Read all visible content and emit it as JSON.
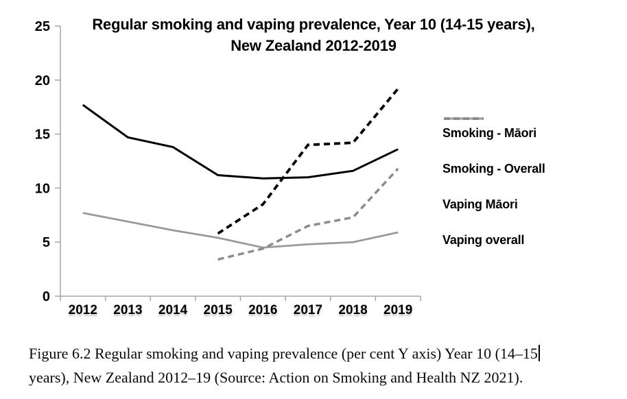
{
  "chart_data": {
    "type": "line",
    "title_line1": "Regular smoking and vaping prevalence, Year 10 (14-15 years),",
    "title_line2": "New Zealand 2012-2019",
    "categories": [
      "2012",
      "2013",
      "2014",
      "2015",
      "2016",
      "2017",
      "2018",
      "2019"
    ],
    "yticks": [
      0,
      5,
      10,
      15,
      20,
      25
    ],
    "ylim": [
      0,
      25
    ],
    "ylabel": "per cent",
    "grid": false,
    "legend_position": "right",
    "axis_color": "#a6a6a6",
    "series": [
      {
        "name": "Smoking - Māori",
        "color": "#000000",
        "style": "solid",
        "width": 3.0,
        "values": [
          17.7,
          14.7,
          13.8,
          11.2,
          10.9,
          11.0,
          11.6,
          13.6
        ]
      },
      {
        "name": "Smoking - Overall",
        "color": "#9a9a9a",
        "style": "solid",
        "width": 2.8,
        "values": [
          7.7,
          6.9,
          6.1,
          5.4,
          4.5,
          4.8,
          5.0,
          5.9
        ]
      },
      {
        "name": "Vaping Māori",
        "color": "#000000",
        "style": "dashed",
        "width": 3.8,
        "values": [
          null,
          null,
          null,
          5.8,
          8.5,
          14.0,
          14.2,
          19.2
        ]
      },
      {
        "name": "Vaping overall",
        "color": "#8c8c8c",
        "style": "dashed",
        "width": 3.5,
        "values": [
          null,
          null,
          null,
          3.4,
          4.4,
          6.5,
          7.3,
          11.8
        ]
      }
    ]
  },
  "caption": {
    "line1": "Figure 6.2 Regular smoking and vaping prevalence (per cent Y axis) Year 10 (14–15",
    "line2": "years), New Zealand 2012–19 (Source: Action on Smoking and Health NZ 2021)."
  }
}
